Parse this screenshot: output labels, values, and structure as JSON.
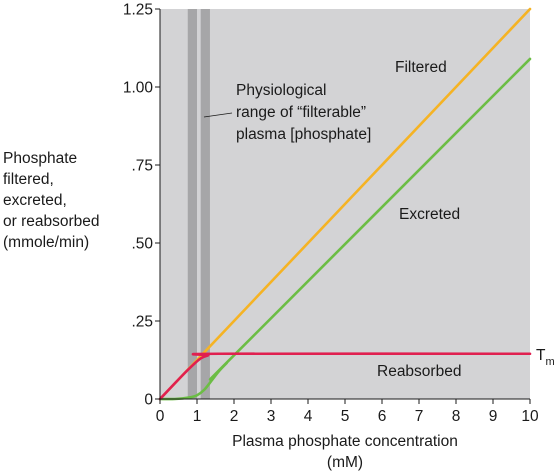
{
  "chart_data": {
    "type": "line",
    "xlabel_line1": "Plasma phosphate concentration",
    "xlabel_line2": "(mM)",
    "ylabel_lines": [
      "Phosphate",
      "filtered,",
      "excreted,",
      "or reabsorbed",
      "(mmole/min)"
    ],
    "xlim": [
      0,
      10
    ],
    "ylim": [
      0,
      1.25
    ],
    "x_ticks": [
      "0",
      "1",
      "2",
      "3",
      "4",
      "5",
      "6",
      "7",
      "8",
      "9",
      "10"
    ],
    "y_ticks": [
      {
        "value": 0,
        "label": "0"
      },
      {
        "value": 0.25,
        "label": ".25"
      },
      {
        "value": 0.5,
        "label": ".50"
      },
      {
        "value": 0.75,
        "label": ".75"
      },
      {
        "value": 1.0,
        "label": "1.00"
      },
      {
        "value": 1.25,
        "label": "1.25"
      }
    ],
    "grid": false,
    "physiological_range": {
      "outer": [
        0.75,
        1.35
      ],
      "inner": [
        1.0,
        1.1
      ],
      "label_lines": [
        "Physiological",
        "range of “filterable”",
        "plasma [phosphate]"
      ]
    },
    "series": [
      {
        "name": "Filtered",
        "color": "#f5b324",
        "points": [
          [
            0,
            0
          ],
          [
            10,
            1.25
          ]
        ]
      },
      {
        "name": "Excreted",
        "color": "#6cbd45",
        "points": [
          [
            0,
            0
          ],
          [
            0.4,
            0.0
          ],
          [
            0.8,
            0.005
          ],
          [
            1.0,
            0.012
          ],
          [
            1.2,
            0.03
          ],
          [
            1.4,
            0.06
          ],
          [
            1.6,
            0.09
          ],
          [
            1.8,
            0.115
          ],
          [
            2.0,
            0.14
          ],
          [
            10,
            1.09
          ]
        ]
      },
      {
        "name": "Reabsorbed",
        "color": "#e02050",
        "points": [
          [
            0,
            0
          ],
          [
            0.6,
            0.075
          ],
          [
            0.9,
            0.11
          ],
          [
            1.1,
            0.13
          ],
          [
            1.3,
            0.14
          ],
          [
            1.6,
            0.145
          ],
          [
            10,
            0.145
          ]
        ]
      }
    ],
    "tm_label": "T",
    "tm_subscript": "m"
  }
}
